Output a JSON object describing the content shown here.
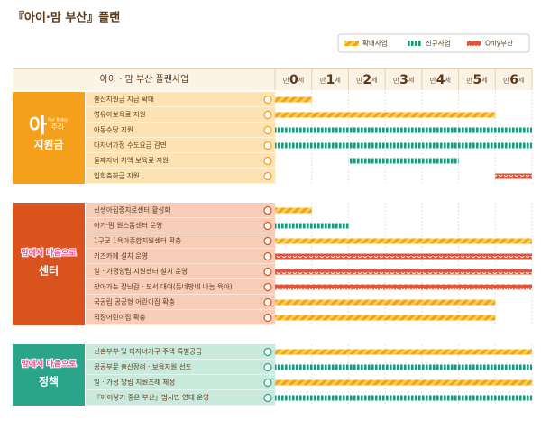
{
  "title": "『아이·맘 부산』플랜",
  "legend": [
    {
      "type": "expand",
      "label": "확대사업"
    },
    {
      "type": "new",
      "label": "신규사업"
    },
    {
      "type": "only",
      "label": "Only부산"
    }
  ],
  "header": "아이 · 맘 부산 플랜사업",
  "ages": [
    {
      "pre": "만",
      "n": "0",
      "post": "세"
    },
    {
      "pre": "만",
      "n": "1",
      "post": "세"
    },
    {
      "pre": "만",
      "n": "2",
      "post": "세"
    },
    {
      "pre": "만",
      "n": "3",
      "post": "세"
    },
    {
      "pre": "만",
      "n": "4",
      "post": "세"
    },
    {
      "pre": "만",
      "n": "5",
      "post": "세"
    },
    {
      "pre": "만",
      "n": "6",
      "post": "세"
    }
  ],
  "groups": [
    {
      "logo": "아",
      "logo_sub": "주라",
      "logo_tag": "For Baby",
      "name": "지원금",
      "color": "#f5a01a",
      "row_bg": "#fde3b4",
      "rows": [
        {
          "label": "출산지원금 지급 확대",
          "type": "expand",
          "start": 0,
          "end": 1
        },
        {
          "label": "영유아보육료 지원",
          "type": "expand",
          "start": 0,
          "end": 6
        },
        {
          "label": "아동수당 지원",
          "type": "new",
          "start": 0,
          "end": 7
        },
        {
          "label": "다자녀가정 수도요금 감면",
          "type": "new",
          "start": 0,
          "end": 7
        },
        {
          "label": "둘째자녀 차액 보육료 지원",
          "type": "new",
          "start": 2,
          "end": 5
        },
        {
          "label": "입학축하금 지원",
          "type": "only",
          "start": 6,
          "end": 7
        }
      ]
    },
    {
      "logo": "맘에서 마음으로",
      "name": "센터",
      "color": "#d9531e",
      "row_bg": "#f7cdb8",
      "rows": [
        {
          "label": "신생아집중치료센터 활성화",
          "type": "expand",
          "start": 0,
          "end": 1
        },
        {
          "label": "아가·맘 원스톱센터 운영",
          "type": "new",
          "start": 0,
          "end": 2
        },
        {
          "label": "1구군 1육아종합지원센터 확충",
          "type": "expand",
          "start": 0,
          "end": 7
        },
        {
          "label": "키즈카페 설치 운영",
          "type": "only",
          "start": 0,
          "end": 7
        },
        {
          "label": "일 · 가정양립 지원센터 설치 운영",
          "type": "only",
          "start": 0,
          "end": 7
        },
        {
          "label": "찾아가는 장난감 · 도서 대여(동네방네 나눔 육아)",
          "type": "only",
          "start": 0,
          "end": 7
        },
        {
          "label": "국공립 공공형 어린이집 확충",
          "type": "expand",
          "start": 0,
          "end": 6
        },
        {
          "label": "직장어린이집 확충",
          "type": "expand",
          "start": 0,
          "end": 6
        }
      ]
    },
    {
      "logo": "맘에서 마음으로",
      "name": "정책",
      "color": "#2aa58a",
      "row_bg": "#c9eadc",
      "rows": [
        {
          "label": "신혼부부 및 다자녀가구 주택 특별공급",
          "type": "expand",
          "start": 0,
          "end": 7
        },
        {
          "label": "공공부문 출산장려 · 보육지원 선도",
          "type": "new",
          "start": 0,
          "end": 7
        },
        {
          "label": "일 · 가정 양립 지원조례 제정",
          "type": "expand",
          "start": 0,
          "end": 7
        },
        {
          "label": "『아이낳기 좋은 부산』범시민 연대 운영",
          "type": "new",
          "start": 0,
          "end": 7
        }
      ]
    }
  ]
}
